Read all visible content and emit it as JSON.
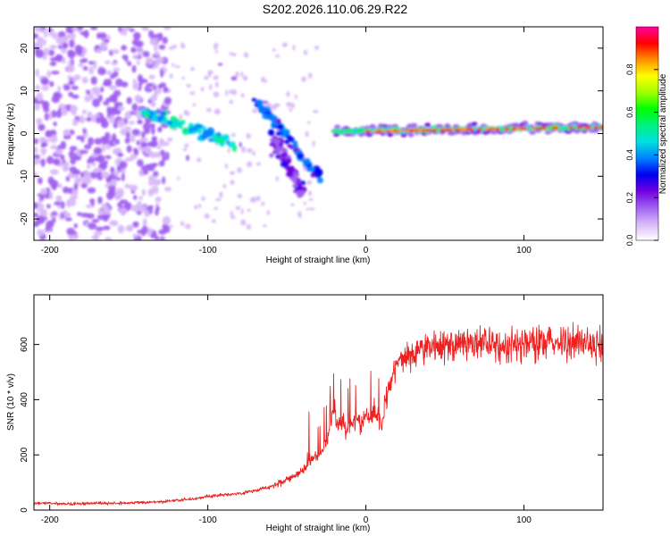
{
  "figure": {
    "title": "S202.2026.110.06.29.R22"
  },
  "chart_data": [
    {
      "type": "heatmap",
      "name": "spectrogram",
      "xlabel": "Height of straight line (km)",
      "ylabel": "Frequency (Hz)",
      "xlim": [
        -210,
        150
      ],
      "ylim": [
        -25,
        25
      ],
      "xticks": [
        -200,
        -100,
        0,
        100
      ],
      "xtick_labels": [
        "-200",
        "-100",
        "0",
        "100"
      ],
      "yticks": [
        -20,
        -10,
        0,
        10,
        20
      ],
      "ytick_labels": [
        "-20",
        "-10",
        "0",
        "10",
        "20"
      ],
      "colorbar": {
        "label": "Normalized spectral amplitude",
        "range": [
          0,
          1
        ],
        "ticks": [
          0.0,
          0.2,
          0.4,
          0.6,
          0.8
        ],
        "tick_labels": [
          "0.0",
          "0.2",
          "0.4",
          "0.6",
          "0.8"
        ],
        "colormap": [
          "#ffffff",
          "#d8b8f8",
          "#a060f0",
          "#7000e0",
          "#0000f0",
          "#0080ff",
          "#00e0e0",
          "#00f080",
          "#00ff00",
          "#a0ff00",
          "#ffff00",
          "#ff9000",
          "#ff0000",
          "#ff00a0"
        ]
      },
      "features": {
        "carrier_line": {
          "x_start": -20,
          "x_end": 150,
          "frequency_start": 0.5,
          "frequency_end": 1.5,
          "amplitude": 0.9
        },
        "doppler_branches": [
          {
            "x_start": -140,
            "x_end": -80,
            "frequency_start": 5,
            "frequency_end": -3,
            "amplitude": 0.45
          },
          {
            "x_start": -70,
            "x_end": -30,
            "frequency_start": 8,
            "frequency_end": -10,
            "amplitude": 0.35
          },
          {
            "x_start": -60,
            "x_end": -40,
            "frequency_start": 0,
            "frequency_end": -14,
            "amplitude": 0.2
          }
        ],
        "noise_region": {
          "x_start": -210,
          "x_end": -125,
          "frequency_min": -25,
          "frequency_max": 25,
          "amplitude": 0.12
        }
      }
    },
    {
      "type": "line",
      "name": "snr",
      "xlabel": "Height of straight line (km)",
      "ylabel": "SNR (10 * v/v)",
      "xlim": [
        -210,
        150
      ],
      "ylim": [
        0,
        780
      ],
      "xticks": [
        -200,
        -100,
        0,
        100
      ],
      "xtick_labels": [
        "-200",
        "-100",
        "0",
        "100"
      ],
      "yticks": [
        0,
        200,
        400,
        600
      ],
      "ytick_labels": [
        "0",
        "200",
        "400",
        "600"
      ],
      "color": "#ee2020",
      "series": [
        {
          "name": "SNR",
          "x": [
            -210,
            -200,
            -190,
            -180,
            -170,
            -160,
            -150,
            -140,
            -130,
            -120,
            -110,
            -100,
            -90,
            -80,
            -70,
            -60,
            -50,
            -40,
            -35,
            -30,
            -25,
            -22,
            -20,
            -18,
            -15,
            -12,
            -10,
            -8,
            -5,
            -3,
            0,
            3,
            5,
            8,
            10,
            12,
            15,
            20,
            25,
            30,
            35,
            40,
            50,
            60,
            70,
            80,
            90,
            100,
            110,
            120,
            130,
            140,
            150
          ],
          "values": [
            25,
            25,
            22,
            24,
            25,
            24,
            26,
            28,
            30,
            35,
            40,
            50,
            55,
            60,
            70,
            85,
            110,
            140,
            180,
            200,
            240,
            320,
            380,
            300,
            330,
            280,
            300,
            340,
            320,
            310,
            330,
            340,
            350,
            330,
            300,
            380,
            460,
            520,
            560,
            570,
            580,
            585,
            590,
            600,
            610,
            600,
            590,
            600,
            600,
            610,
            600,
            605,
            600
          ]
        }
      ]
    }
  ]
}
